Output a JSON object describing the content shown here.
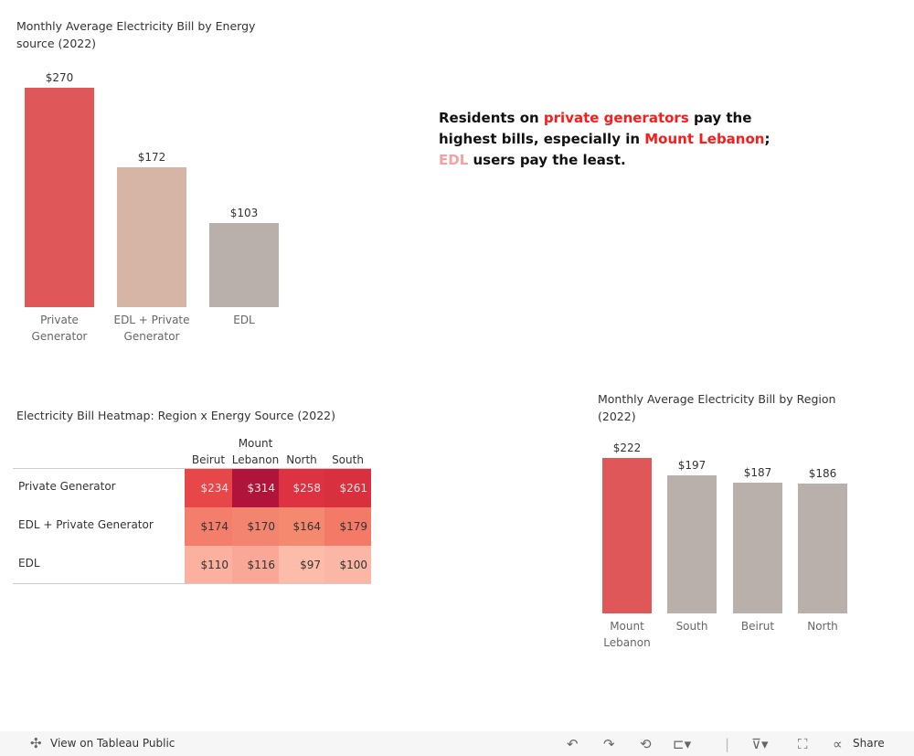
{
  "chart_data": [
    {
      "type": "bar",
      "title": "Monthly Average Electricity Bill by Energy source (2022)",
      "categories": [
        "Private Generator",
        "EDL + Private Generator",
        "EDL"
      ],
      "values": [
        270,
        172,
        103
      ],
      "labels": [
        "$270",
        "$172",
        "$103"
      ],
      "colors": [
        "#e0575a",
        "#d7b5a6",
        "#bab0ab"
      ],
      "ylim": [
        0,
        270
      ]
    },
    {
      "type": "heatmap",
      "title": "Electricity Bill Heatmap: Region x Energy Source (2022)",
      "columns": [
        "Beirut",
        "Mount Lebanon",
        "North",
        "South"
      ],
      "rows": [
        "Private Generator",
        "EDL + Private Generator",
        "EDL"
      ],
      "values": [
        [
          234,
          314,
          258,
          261
        ],
        [
          174,
          170,
          164,
          179
        ],
        [
          110,
          116,
          97,
          100
        ]
      ],
      "labels": [
        [
          "$234",
          "$314",
          "$258",
          "$261"
        ],
        [
          "$174",
          "$170",
          "$164",
          "$179"
        ],
        [
          "$110",
          "$116",
          "$97",
          "$100"
        ]
      ],
      "colors": [
        [
          "#e8474a",
          "#b0143a",
          "#dc3242",
          "#d93040"
        ],
        [
          "#f47e6c",
          "#f38470",
          "#f5896f",
          "#f37a66"
        ],
        [
          "#fbb0a0",
          "#f9a898",
          "#fdbcaa",
          "#fcb6a6"
        ]
      ]
    },
    {
      "type": "bar",
      "title": "Monthly Average Electricity Bill by Region (2022)",
      "categories": [
        "Mount Lebanon",
        "South",
        "Beirut",
        "North"
      ],
      "values": [
        222,
        197,
        187,
        186
      ],
      "labels": [
        "$222",
        "$197",
        "$187",
        "$186"
      ],
      "colors": [
        "#e0575a",
        "#bab0ab",
        "#bab0ab",
        "#bab0ab"
      ],
      "ylim": [
        0,
        222
      ]
    }
  ],
  "annotation": {
    "parts": [
      {
        "text": "Residents on ",
        "color": "#111111"
      },
      {
        "text": "private generators",
        "color": "#ff1a1a"
      },
      {
        "text": " pay the highest bills, especially in ",
        "color": "#111111"
      },
      {
        "text": "Mount Lebanon",
        "color": "#ff1a1a"
      },
      {
        "text": "; ",
        "color": "#111111"
      },
      {
        "text": "EDL",
        "color": "#f7a0a0"
      },
      {
        "text": " users pay the least.",
        "color": "#111111"
      }
    ]
  },
  "footer": {
    "view_label": "View on Tableau Public",
    "share_label": "Share"
  }
}
